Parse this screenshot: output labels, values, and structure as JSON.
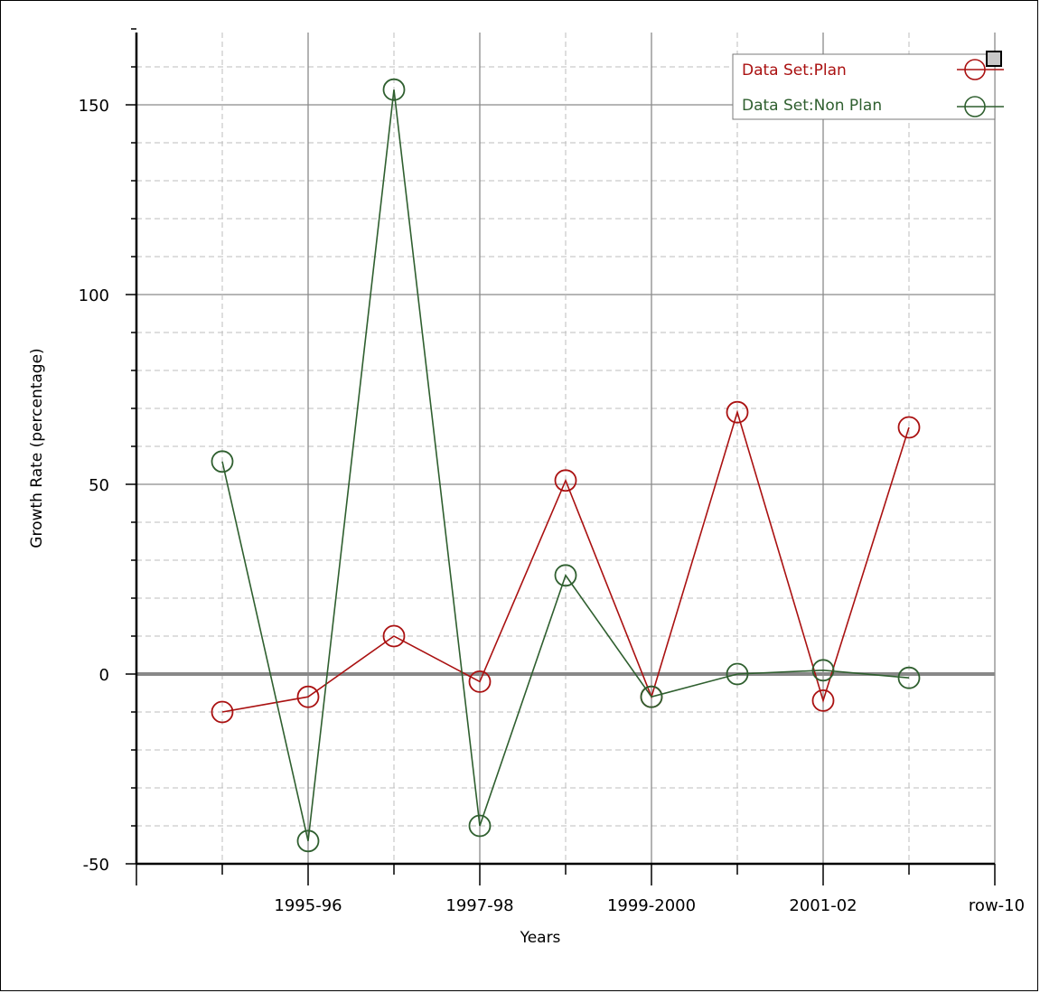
{
  "chart_data": {
    "type": "line",
    "title": "",
    "xlabel": "Years",
    "ylabel": "Growth Rate (percentage)",
    "x_tick_labels": [
      "1995-96",
      "1997-98",
      "1999-2000",
      "2001-02",
      "row-10"
    ],
    "y_ticks": [
      -50,
      0,
      50,
      100,
      150
    ],
    "ylim": [
      -50,
      170
    ],
    "grid": true,
    "legend_position": "top-right",
    "series": [
      {
        "name": "Data Set:Plan",
        "color": "#aa1111",
        "marker": "circle",
        "values": [
          {
            "x": 1,
            "y": -10
          },
          {
            "x": 2,
            "y": -6
          },
          {
            "x": 3,
            "y": 10
          },
          {
            "x": 4,
            "y": -2
          },
          {
            "x": 5,
            "y": 51
          },
          {
            "x": 6,
            "y": -6
          },
          {
            "x": 7,
            "y": 69
          },
          {
            "x": 8,
            "y": -7
          },
          {
            "x": 9,
            "y": 65
          }
        ]
      },
      {
        "name": "Data Set:Non Plan",
        "color": "#2f5f2f",
        "marker": "circle",
        "values": [
          {
            "x": 1,
            "y": 56
          },
          {
            "x": 2,
            "y": -44
          },
          {
            "x": 3,
            "y": 154
          },
          {
            "x": 4,
            "y": -40
          },
          {
            "x": 5,
            "y": 26
          },
          {
            "x": 6,
            "y": -6
          },
          {
            "x": 7,
            "y": 0
          },
          {
            "x": 8,
            "y": 1
          },
          {
            "x": 9,
            "y": -1
          }
        ]
      }
    ]
  }
}
